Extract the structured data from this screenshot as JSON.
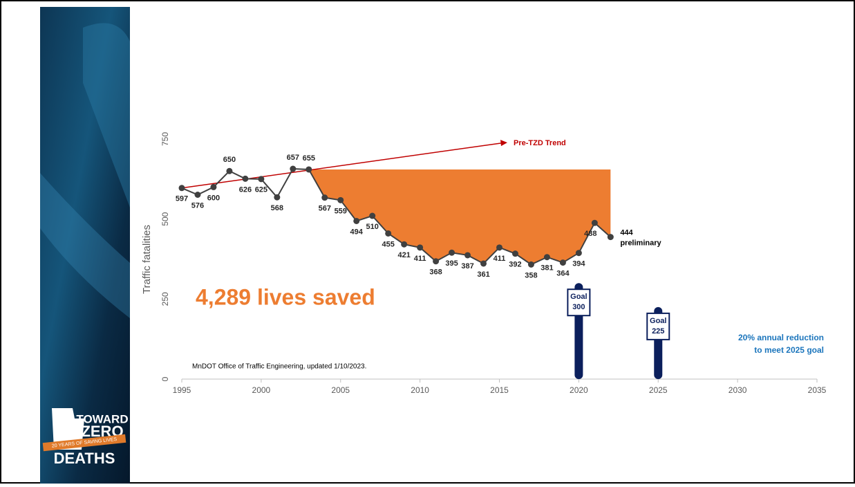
{
  "chart_data": {
    "type": "line",
    "ylabel": "Traffic fatalities",
    "x": [
      1995,
      1996,
      1997,
      1998,
      1999,
      2000,
      2001,
      2002,
      2003,
      2004,
      2005,
      2006,
      2007,
      2008,
      2009,
      2010,
      2011,
      2012,
      2013,
      2014,
      2015,
      2016,
      2017,
      2018,
      2019,
      2020,
      2021,
      2022
    ],
    "series": [
      {
        "color": "#404040",
        "values": [
          597,
          576,
          600,
          650,
          626,
          625,
          568,
          657,
          655,
          567,
          559,
          494,
          510,
          455,
          421,
          411,
          368,
          395,
          387,
          361,
          411,
          392,
          358,
          381,
          364,
          394,
          488,
          444
        ]
      }
    ],
    "area_color": "#ed7d31",
    "xlim": [
      1995,
      2035
    ],
    "xticks": [
      1995,
      2000,
      2005,
      2010,
      2015,
      2020,
      2025,
      2030,
      2035
    ],
    "ylim": [
      0,
      750
    ],
    "yticks": [
      0,
      250,
      500,
      750
    ],
    "trend": {
      "label": "Pre-TZD Trend",
      "color": "#c00000",
      "x": [
        1995,
        2015.5
      ],
      "values": [
        597,
        739
      ]
    },
    "goals": [
      {
        "label": "Goal",
        "x": 2020,
        "value": 300
      },
      {
        "label": "Goal",
        "x": 2025,
        "value": 225
      }
    ],
    "goal_color": "#0b1f5c",
    "last_note": "preliminary",
    "headline": "4,289 lives saved",
    "reduction_note": [
      "20% annual reduction",
      "to meet 2025 goal"
    ],
    "source": "MnDOT Office of Traffic Engineering, updated 1/10/2023."
  },
  "logo": {
    "line1": "TOWARD",
    "line2": "ZERO",
    "banner": "20 YEARS OF SAVING LIVES",
    "line3": "DEATHS"
  }
}
